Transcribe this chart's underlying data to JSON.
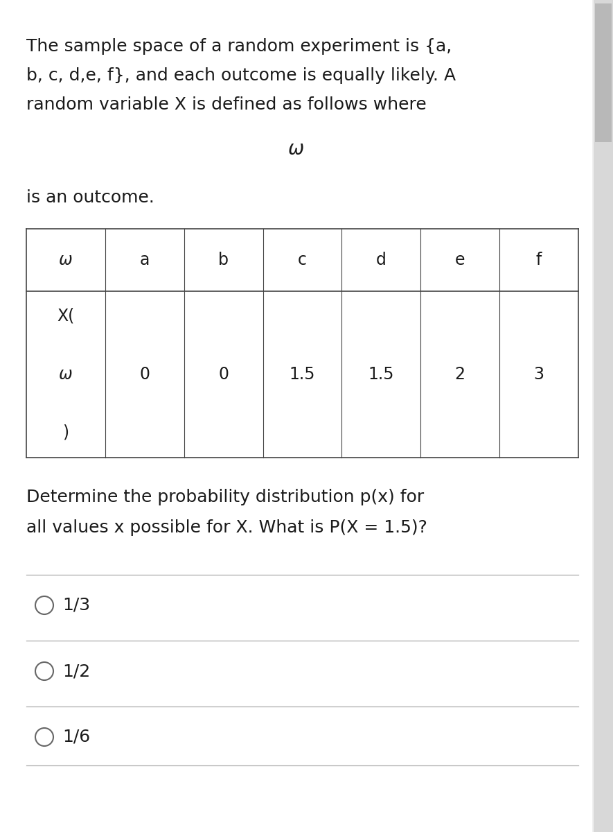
{
  "bg_color": "#f0f0f0",
  "page_bg": "#ffffff",
  "text_color": "#1a1a1a",
  "scrollbar_bg": "#d8d8d8",
  "scrollbar_handle": "#b8b8b8",
  "paragraph1": "The sample space of a random experiment is {a,",
  "paragraph2": "b, c, d,e, f}, and each outcome is equally likely. A",
  "paragraph3": "random variable X is defined as follows where",
  "omega_symbol": "ω",
  "is_outcome": "is an outcome.",
  "table_header_row": [
    "ω",
    "a",
    "b",
    "c",
    "d",
    "e",
    "f"
  ],
  "table_row1_col0": "X(",
  "table_row2_col0": "ω",
  "table_row2_values": [
    "0",
    "0",
    "1.5",
    "1.5",
    "2",
    "3"
  ],
  "table_row3_col0": ")",
  "question_line1": "Determine the probability distribution p(x) for",
  "question_line2": "all values x possible for X. What is P(X = 1.5)?",
  "options": [
    "1/3",
    "1/2",
    "1/6"
  ],
  "font_size_main": 18,
  "font_size_table": 17,
  "line_color": "#aaaaaa",
  "table_line_color": "#444444"
}
